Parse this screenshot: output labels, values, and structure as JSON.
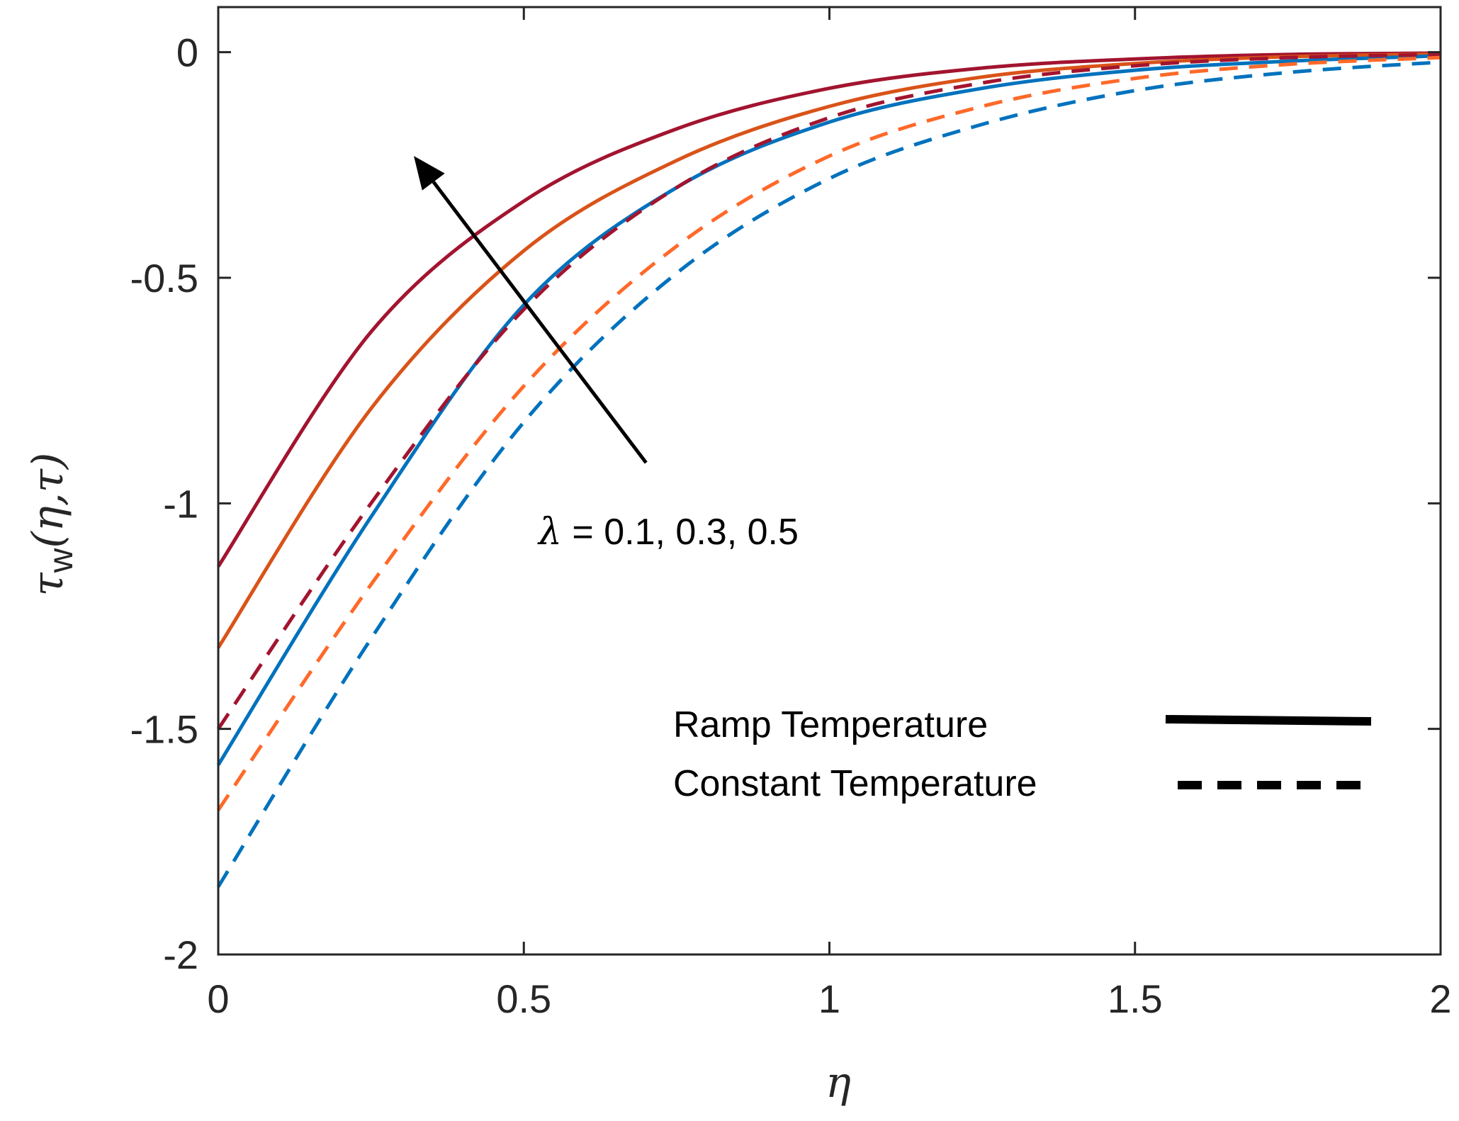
{
  "chart_data": {
    "type": "line",
    "title": "",
    "xlabel": "η",
    "ylabel": "τ_w(η,τ)",
    "ylabel_main": "τ",
    "ylabel_sub": "w",
    "ylabel_args": "(η,τ)",
    "xlim": [
      0,
      2
    ],
    "ylim": [
      -2,
      0.1
    ],
    "xticks": [
      0,
      0.5,
      1,
      1.5,
      2
    ],
    "xtick_labels": [
      "0",
      "0.5",
      "1",
      "1.5",
      "2"
    ],
    "yticks": [
      0,
      -0.5,
      -1,
      -1.5,
      -2
    ],
    "ytick_labels": [
      "0",
      "-0.5",
      "-1",
      "-1.5",
      "-2"
    ],
    "grid": false,
    "annotation": {
      "symbol": "λ",
      "text": " = 0.1, 0.3, 0.5",
      "arrow_from": [
        0.7,
        -0.91
      ],
      "arrow_to": [
        0.32,
        -0.23
      ]
    },
    "legend": {
      "position": "bottom-right",
      "entries": [
        {
          "label": "Ramp Temperature",
          "style": "solid"
        },
        {
          "label": "Constant Temperature",
          "style": "dashed"
        }
      ]
    },
    "x": [
      0,
      0.25,
      0.5,
      0.75,
      1.0,
      1.25,
      1.5,
      1.75,
      2.0
    ],
    "series": [
      {
        "name": "Ramp Temperature, λ = 0.5",
        "style": "solid",
        "color": "#A2142F",
        "values": [
          -1.14,
          -0.62,
          -0.33,
          -0.17,
          -0.08,
          -0.035,
          -0.015,
          -0.005,
          -0.002
        ]
      },
      {
        "name": "Ramp Temperature, λ = 0.3",
        "style": "solid",
        "color": "#D95319",
        "values": [
          -1.32,
          -0.79,
          -0.44,
          -0.24,
          -0.12,
          -0.055,
          -0.025,
          -0.01,
          -0.004
        ]
      },
      {
        "name": "Ramp Temperature, λ = 0.1",
        "style": "solid",
        "color": "#0072BD",
        "values": [
          -1.58,
          -1.03,
          -0.56,
          -0.3,
          -0.155,
          -0.08,
          -0.04,
          -0.02,
          -0.008
        ]
      },
      {
        "name": "Constant Temperature, λ = 0.5",
        "style": "dashed",
        "color": "#A2142F",
        "values": [
          -1.5,
          -1.0,
          -0.57,
          -0.3,
          -0.145,
          -0.068,
          -0.03,
          -0.012,
          -0.005
        ]
      },
      {
        "name": "Constant Temperature, λ = 0.3",
        "style": "dashed",
        "color": "#FF6929",
        "values": [
          -1.68,
          -1.18,
          -0.74,
          -0.43,
          -0.23,
          -0.12,
          -0.058,
          -0.027,
          -0.012
        ]
      },
      {
        "name": "Constant Temperature, λ = 0.1",
        "style": "dashed",
        "color": "#0072BD",
        "values": [
          -1.85,
          -1.3,
          -0.82,
          -0.49,
          -0.28,
          -0.16,
          -0.085,
          -0.045,
          -0.022
        ]
      }
    ]
  }
}
